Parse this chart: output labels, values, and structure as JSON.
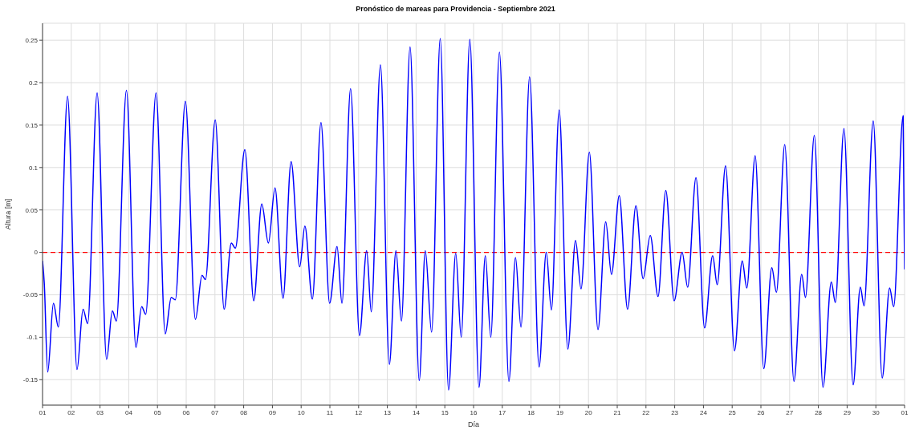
{
  "chart_data": {
    "type": "line",
    "title": "Pronóstico de mareas para Providencia - Septiembre 2021",
    "xlabel": "Día",
    "ylabel": "Altura [m]",
    "xlim": [
      "2021-09-01",
      "2021-10-01"
    ],
    "ylim": [
      -0.18,
      0.27
    ],
    "xticks": [
      {
        "value": "2021-09-01",
        "label": "01"
      },
      {
        "value": "2021-09-02",
        "label": "02"
      },
      {
        "value": "2021-09-03",
        "label": "03"
      },
      {
        "value": "2021-09-04",
        "label": "04"
      },
      {
        "value": "2021-09-05",
        "label": "05"
      },
      {
        "value": "2021-09-06",
        "label": "06"
      },
      {
        "value": "2021-09-07",
        "label": "07"
      },
      {
        "value": "2021-09-08",
        "label": "08"
      },
      {
        "value": "2021-09-09",
        "label": "09"
      },
      {
        "value": "2021-09-10",
        "label": "10"
      },
      {
        "value": "2021-09-11",
        "label": "11"
      },
      {
        "value": "2021-09-12",
        "label": "12"
      },
      {
        "value": "2021-09-13",
        "label": "13"
      },
      {
        "value": "2021-09-14",
        "label": "14"
      },
      {
        "value": "2021-09-15",
        "label": "15"
      },
      {
        "value": "2021-09-16",
        "label": "16"
      },
      {
        "value": "2021-09-17",
        "label": "17"
      },
      {
        "value": "2021-09-18",
        "label": "18"
      },
      {
        "value": "2021-09-19",
        "label": "19"
      },
      {
        "value": "2021-09-20",
        "label": "20"
      },
      {
        "value": "2021-09-21",
        "label": "21"
      },
      {
        "value": "2021-09-22",
        "label": "22"
      },
      {
        "value": "2021-09-23",
        "label": "23"
      },
      {
        "value": "2021-09-24",
        "label": "24"
      },
      {
        "value": "2021-09-25",
        "label": "25"
      },
      {
        "value": "2021-09-26",
        "label": "26"
      },
      {
        "value": "2021-09-27",
        "label": "27"
      },
      {
        "value": "2021-09-28",
        "label": "28"
      },
      {
        "value": "2021-09-29",
        "label": "29"
      },
      {
        "value": "2021-09-30",
        "label": "30"
      },
      {
        "value": "2021-10-01",
        "label": "01"
      }
    ],
    "yticks": [
      -0.15,
      -0.1,
      -0.05,
      0,
      0.05,
      0.1,
      0.15,
      0.2,
      0.25
    ],
    "grid": true,
    "ref_lines": [
      {
        "axis": "y",
        "value": 0,
        "color": "#ff0000",
        "line_style": "dashed"
      }
    ],
    "series": [
      {
        "color": "#0000ff",
        "x": [
          "2021-09-01T00:00",
          "2021-09-01T01:26",
          "2021-09-01T04:19",
          "2021-09-01T09:07",
          "2021-09-01T13:12",
          "2021-09-01T20:53",
          "2021-09-02T04:48",
          "2021-09-02T09:50",
          "2021-09-02T13:41",
          "2021-09-02T21:36",
          "2021-09-03T05:31",
          "2021-09-03T10:19",
          "2021-09-03T13:41",
          "2021-09-03T22:05",
          "2021-09-04T06:00",
          "2021-09-04T10:48",
          "2021-09-04T14:10",
          "2021-09-04T22:48",
          "2021-09-05T06:29",
          "2021-09-05T11:31",
          "2021-09-05T14:53",
          "2021-09-05T23:17",
          "2021-09-06T07:41",
          "2021-09-06T13:12",
          "2021-09-06T16:05",
          "2021-09-07T00:14",
          "2021-09-07T07:41",
          "2021-09-07T13:41",
          "2021-09-07T17:02",
          "2021-09-08T00:58",
          "2021-09-08T08:24",
          "2021-09-08T15:07",
          "2021-09-08T20:38",
          "2021-09-09T02:10",
          "2021-09-09T08:53",
          "2021-09-09T15:36",
          "2021-09-09T22:48",
          "2021-09-10T03:07",
          "2021-09-10T09:22",
          "2021-09-10T16:34",
          "2021-09-10T23:46",
          "2021-09-11T06:00",
          "2021-09-11T10:05",
          "2021-09-11T17:17",
          "2021-09-12T00:43",
          "2021-09-12T06:43",
          "2021-09-12T10:34",
          "2021-09-12T18:14",
          "2021-09-13T01:41",
          "2021-09-13T07:12",
          "2021-09-13T11:46",
          "2021-09-13T18:58",
          "2021-09-14T02:38",
          "2021-09-14T07:41",
          "2021-09-14T12:58",
          "2021-09-14T20:10",
          "2021-09-15T03:07",
          "2021-09-15T09:07",
          "2021-09-15T13:41",
          "2021-09-15T20:53",
          "2021-09-16T04:34",
          "2021-09-16T09:50",
          "2021-09-16T14:24",
          "2021-09-16T21:36",
          "2021-09-17T05:31",
          "2021-09-17T11:02",
          "2021-09-17T15:36",
          "2021-09-17T22:48",
          "2021-09-18T06:43",
          "2021-09-18T12:43",
          "2021-09-18T17:02",
          "2021-09-18T23:31",
          "2021-09-19T06:43",
          "2021-09-19T13:12",
          "2021-09-19T17:46",
          "2021-09-20T00:43",
          "2021-09-20T07:55",
          "2021-09-20T14:24",
          "2021-09-20T19:12",
          "2021-09-21T01:41",
          "2021-09-21T08:38",
          "2021-09-21T15:36",
          "2021-09-21T21:36",
          "2021-09-22T03:36",
          "2021-09-22T10:05",
          "2021-09-22T16:34",
          "2021-09-22T23:31",
          "2021-09-23T06:14",
          "2021-09-23T10:48",
          "2021-09-23T17:46",
          "2021-09-24T00:58",
          "2021-09-24T07:41",
          "2021-09-24T11:31",
          "2021-09-24T18:29",
          "2021-09-25T01:55",
          "2021-09-25T08:24",
          "2021-09-25T12:14",
          "2021-09-25T19:12",
          "2021-09-26T02:24",
          "2021-09-26T09:07",
          "2021-09-26T12:58",
          "2021-09-26T19:55",
          "2021-09-27T03:36",
          "2021-09-27T10:05",
          "2021-09-27T13:12",
          "2021-09-27T20:38",
          "2021-09-28T03:50",
          "2021-09-28T10:48",
          "2021-09-28T14:10",
          "2021-09-28T21:22",
          "2021-09-29T05:02",
          "2021-09-29T11:02",
          "2021-09-29T14:10",
          "2021-09-29T21:50",
          "2021-09-30T05:17",
          "2021-09-30T11:31",
          "2021-09-30T14:53",
          "2021-09-30T22:48",
          "2021-10-01T00:00"
        ],
        "values": [
          -0.01,
          -0.036,
          -0.141,
          -0.06,
          -0.088,
          0.184,
          -0.138,
          -0.067,
          -0.084,
          0.188,
          -0.126,
          -0.069,
          -0.081,
          0.191,
          -0.112,
          -0.064,
          -0.073,
          0.188,
          -0.096,
          -0.053,
          -0.056,
          0.178,
          -0.079,
          -0.027,
          -0.032,
          0.156,
          -0.067,
          0.011,
          0.005,
          0.121,
          -0.057,
          0.057,
          0.011,
          0.076,
          -0.054,
          0.107,
          -0.017,
          0.031,
          -0.055,
          0.153,
          -0.06,
          0.007,
          -0.06,
          0.193,
          -0.098,
          0.002,
          -0.07,
          0.221,
          -0.132,
          0.002,
          -0.081,
          0.242,
          -0.151,
          0.002,
          -0.094,
          0.252,
          -0.162,
          -0.001,
          -0.1,
          0.251,
          -0.159,
          -0.004,
          -0.1,
          0.236,
          -0.152,
          -0.006,
          -0.088,
          0.207,
          -0.135,
          0.0,
          -0.068,
          0.168,
          -0.114,
          0.014,
          -0.043,
          0.118,
          -0.091,
          0.036,
          -0.026,
          0.067,
          -0.067,
          0.055,
          -0.031,
          0.02,
          -0.052,
          0.073,
          -0.057,
          0.0,
          -0.041,
          0.088,
          -0.089,
          -0.004,
          -0.038,
          0.102,
          -0.116,
          -0.01,
          -0.042,
          0.114,
          -0.137,
          -0.018,
          -0.047,
          0.127,
          -0.152,
          -0.026,
          -0.053,
          0.138,
          -0.159,
          -0.035,
          -0.059,
          0.146,
          -0.156,
          -0.041,
          -0.063,
          0.155,
          -0.148,
          -0.042,
          -0.064,
          0.161,
          -0.02
        ]
      }
    ]
  }
}
